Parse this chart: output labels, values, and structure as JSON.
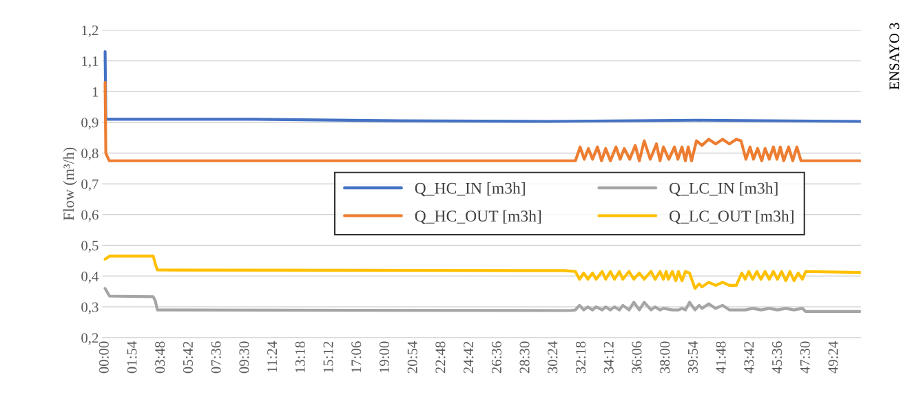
{
  "chart_data": {
    "type": "line",
    "ylabel": "Flow (m³/h)",
    "annotations": [
      "ENSAYO 3"
    ],
    "xlim": [
      -0.2,
      51.2
    ],
    "ylim": [
      0.2,
      1.2
    ],
    "yticks": [
      {
        "value": 0.2,
        "label": "0,2"
      },
      {
        "value": 0.3,
        "label": "0,3"
      },
      {
        "value": 0.4,
        "label": "0,4"
      },
      {
        "value": 0.5,
        "label": "0,5"
      },
      {
        "value": 0.6,
        "label": "0,6"
      },
      {
        "value": 0.7,
        "label": "0,7"
      },
      {
        "value": 0.8,
        "label": "0,8"
      },
      {
        "value": 0.9,
        "label": "0,9"
      },
      {
        "value": 1,
        "label": "1"
      },
      {
        "value": 1.1,
        "label": "1,1"
      },
      {
        "value": 1.2,
        "label": "1,2"
      }
    ],
    "xticks": [
      {
        "value": 0,
        "label": "00:00"
      },
      {
        "value": 1.9,
        "label": "01:54"
      },
      {
        "value": 3.8,
        "label": "03:48"
      },
      {
        "value": 5.7,
        "label": "05:42"
      },
      {
        "value": 7.6,
        "label": "07:36"
      },
      {
        "value": 9.5,
        "label": "09:30"
      },
      {
        "value": 11.4,
        "label": "11:24"
      },
      {
        "value": 13.3,
        "label": "13:18"
      },
      {
        "value": 15.2,
        "label": "15:12"
      },
      {
        "value": 17.1,
        "label": "17:06"
      },
      {
        "value": 19.0,
        "label": "19:00"
      },
      {
        "value": 20.9,
        "label": "20:54"
      },
      {
        "value": 22.8,
        "label": "22:48"
      },
      {
        "value": 24.7,
        "label": "24:42"
      },
      {
        "value": 26.6,
        "label": "26:36"
      },
      {
        "value": 28.5,
        "label": "28:30"
      },
      {
        "value": 30.4,
        "label": "30:24"
      },
      {
        "value": 32.3,
        "label": "32:18"
      },
      {
        "value": 34.2,
        "label": "34:12"
      },
      {
        "value": 36.1,
        "label": "36:06"
      },
      {
        "value": 38.0,
        "label": "38:00"
      },
      {
        "value": 39.9,
        "label": "39:54"
      },
      {
        "value": 41.8,
        "label": "41:48"
      },
      {
        "value": 43.7,
        "label": "43:42"
      },
      {
        "value": 45.6,
        "label": "45:36"
      },
      {
        "value": 47.5,
        "label": "47:30"
      },
      {
        "value": 49.4,
        "label": "49:24"
      }
    ],
    "grid": "y",
    "legend": "center",
    "marker": "none",
    "line_style": "solid",
    "series": [
      {
        "name": "Q_HC_IN [m3h]",
        "color": "#4472c4",
        "x": [
          0,
          0.05,
          10,
          20,
          30,
          40,
          51.14
        ],
        "values": [
          1.13,
          0.91,
          0.91,
          0.905,
          0.903,
          0.907,
          0.903
        ]
      },
      {
        "name": "Q_HC_OUT [m3h]",
        "color": "#ed7d31",
        "x": [
          0,
          0.05,
          0.28,
          31.11,
          31.86,
          32.18,
          32.46,
          32.74,
          33.02,
          33.35,
          33.63,
          33.91,
          34.23,
          34.61,
          34.89,
          35.17,
          35.54,
          35.91,
          36.19,
          36.52,
          36.93,
          37.35,
          37.59,
          37.82,
          38.19,
          38.57,
          38.8,
          39.08,
          39.31,
          39.5,
          39.73,
          40.06,
          40.43,
          40.89,
          41.36,
          41.83,
          42.29,
          42.76,
          43.08,
          43.41,
          43.69,
          43.92,
          44.2,
          44.48,
          44.71,
          44.99,
          45.27,
          45.51,
          45.74,
          45.97,
          46.3,
          46.58,
          46.86,
          47.14,
          47.41,
          51.14
        ],
        "values": [
          1.03,
          0.8,
          0.775,
          0.775,
          0.775,
          0.82,
          0.78,
          0.815,
          0.78,
          0.82,
          0.775,
          0.815,
          0.775,
          0.82,
          0.78,
          0.815,
          0.78,
          0.825,
          0.775,
          0.84,
          0.78,
          0.83,
          0.775,
          0.82,
          0.78,
          0.82,
          0.78,
          0.82,
          0.775,
          0.82,
          0.775,
          0.84,
          0.825,
          0.845,
          0.83,
          0.845,
          0.83,
          0.845,
          0.84,
          0.78,
          0.82,
          0.78,
          0.815,
          0.775,
          0.815,
          0.78,
          0.82,
          0.78,
          0.82,
          0.775,
          0.82,
          0.775,
          0.82,
          0.775,
          0.775,
          0.775
        ]
      },
      {
        "name": "Q_LC_IN [m3h]",
        "color": "#a5a5a5",
        "x": [
          0,
          0.3,
          3.26,
          3.4,
          3.54,
          31.5,
          31.86,
          32.14,
          32.42,
          32.7,
          33.02,
          33.26,
          33.67,
          33.91,
          34.23,
          34.51,
          34.84,
          35.07,
          35.49,
          35.82,
          36.19,
          36.52,
          36.98,
          37.26,
          37.59,
          37.82,
          38.43,
          38.84,
          39.08,
          39.31,
          39.59,
          39.96,
          40.24,
          40.43,
          40.89,
          41.36,
          41.83,
          42.29,
          42.76,
          43.36,
          43.87,
          44.43,
          44.99,
          45.55,
          46.11,
          46.67,
          47.23,
          47.46,
          51.14
        ],
        "values": [
          0.36,
          0.335,
          0.333,
          0.32,
          0.29,
          0.288,
          0.29,
          0.305,
          0.29,
          0.3,
          0.29,
          0.3,
          0.29,
          0.3,
          0.29,
          0.3,
          0.29,
          0.305,
          0.29,
          0.315,
          0.29,
          0.315,
          0.29,
          0.3,
          0.29,
          0.295,
          0.29,
          0.29,
          0.295,
          0.29,
          0.315,
          0.29,
          0.305,
          0.295,
          0.31,
          0.295,
          0.305,
          0.29,
          0.29,
          0.29,
          0.295,
          0.29,
          0.295,
          0.29,
          0.295,
          0.29,
          0.295,
          0.285,
          0.285
        ]
      },
      {
        "name": "Q_LC_OUT [m3h]",
        "color": "#ffc000",
        "x": [
          0,
          0.3,
          3.26,
          3.4,
          3.54,
          31.11,
          31.86,
          32.14,
          32.42,
          32.7,
          33.02,
          33.26,
          33.67,
          33.91,
          34.23,
          34.51,
          34.84,
          35.07,
          35.49,
          35.82,
          36.19,
          36.52,
          36.98,
          37.26,
          37.59,
          37.82,
          38.01,
          38.15,
          38.43,
          38.66,
          38.84,
          39.08,
          39.31,
          39.59,
          39.96,
          40.24,
          40.43,
          40.89,
          41.36,
          41.83,
          42.29,
          42.76,
          43.13,
          43.36,
          43.6,
          43.87,
          44.15,
          44.43,
          44.71,
          44.99,
          45.27,
          45.55,
          45.83,
          46.11,
          46.39,
          46.67,
          46.95,
          47.23,
          47.46,
          51.14
        ],
        "values": [
          0.455,
          0.465,
          0.465,
          0.44,
          0.42,
          0.418,
          0.415,
          0.39,
          0.41,
          0.39,
          0.41,
          0.39,
          0.415,
          0.39,
          0.415,
          0.39,
          0.415,
          0.39,
          0.415,
          0.39,
          0.41,
          0.39,
          0.415,
          0.39,
          0.415,
          0.39,
          0.415,
          0.39,
          0.415,
          0.385,
          0.415,
          0.385,
          0.415,
          0.41,
          0.36,
          0.375,
          0.365,
          0.38,
          0.37,
          0.38,
          0.37,
          0.37,
          0.41,
          0.39,
          0.415,
          0.39,
          0.415,
          0.39,
          0.415,
          0.39,
          0.415,
          0.39,
          0.415,
          0.385,
          0.415,
          0.385,
          0.41,
          0.39,
          0.415,
          0.412
        ]
      }
    ]
  }
}
